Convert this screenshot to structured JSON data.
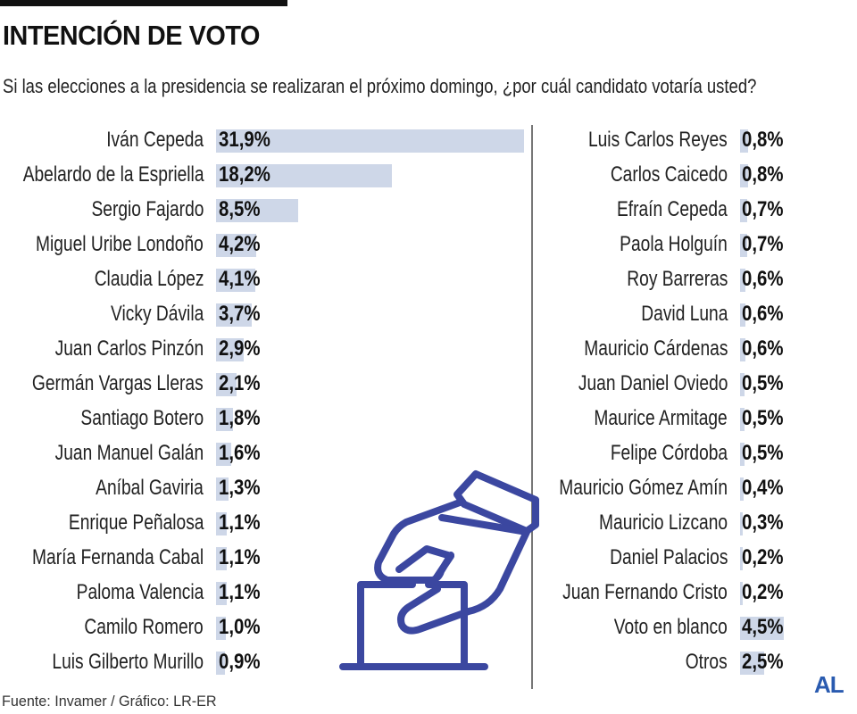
{
  "header": {
    "title": "INTENCIÓN DE VOTO",
    "subtitle": "Si las elecciones a la presidencia se realizaran el próximo domingo, ¿por cuál candidato votaría usted?"
  },
  "footer": {
    "source": "Fuente: Invamer / Gráfico: LR-ER",
    "logo": "AL"
  },
  "colors": {
    "bar": "#ced7e8",
    "icon": "#3b47a0",
    "logo": "#2a5bb0"
  },
  "icon": "ballot-box-hand-icon",
  "chart_data": {
    "type": "bar",
    "orientation": "horizontal",
    "unit": "%",
    "columns": [
      {
        "categories": [
          "Iván Cepeda",
          "Abelardo de la Espriella",
          "Sergio Fajardo",
          "Miguel Uribe Londoño",
          "Claudia López",
          "Vicky Dávila",
          "Juan Carlos Pinzón",
          "Germán Vargas Lleras",
          "Santiago Botero",
          "Juan Manuel Galán",
          "Aníbal Gaviria",
          "Enrique Peñalosa",
          "María Fernanda Cabal",
          "Paloma Valencia",
          "Camilo Romero",
          "Luis Gilberto Murillo"
        ],
        "values": [
          31.9,
          18.2,
          8.5,
          4.2,
          4.1,
          3.7,
          2.9,
          2.1,
          1.8,
          1.6,
          1.3,
          1.1,
          1.1,
          1.1,
          1.0,
          0.9
        ],
        "labels": [
          "31,9%",
          "18,2%",
          "8,5%",
          "4,2%",
          "4,1%",
          "3,7%",
          "2,9%",
          "2,1%",
          "1,8%",
          "1,6%",
          "1,3%",
          "1,1%",
          "1,1%",
          "1,1%",
          "1,0%",
          "0,9%"
        ]
      },
      {
        "categories": [
          "Luis Carlos Reyes",
          "Carlos Caicedo",
          "Efraín Cepeda",
          "Paola Holguín",
          "Roy Barreras",
          "David Luna",
          "Mauricio Cárdenas",
          "Juan Daniel Oviedo",
          "Maurice Armitage",
          "Felipe Córdoba",
          "Mauricio Gómez Amín",
          "Mauricio Lizcano",
          "Daniel Palacios",
          "Juan Fernando Cristo",
          "Voto en blanco",
          "Otros"
        ],
        "values": [
          0.8,
          0.8,
          0.7,
          0.7,
          0.6,
          0.6,
          0.6,
          0.5,
          0.5,
          0.5,
          0.4,
          0.3,
          0.2,
          0.2,
          4.5,
          2.5
        ],
        "labels": [
          "0,8%",
          "0,8%",
          "0,7%",
          "0,7%",
          "0,6%",
          "0,6%",
          "0,6%",
          "0,5%",
          "0,5%",
          "0,5%",
          "0,4%",
          "0,3%",
          "0,2%",
          "0,2%",
          "4,5%",
          "2,5%"
        ]
      }
    ]
  }
}
